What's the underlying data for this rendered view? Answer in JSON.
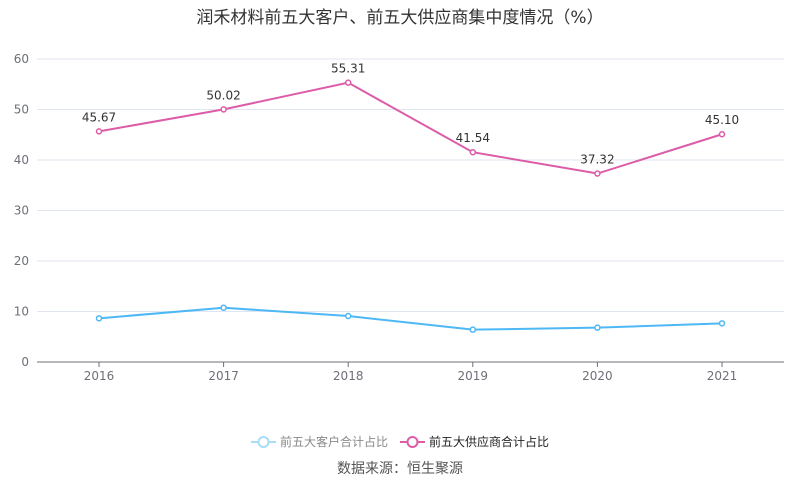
{
  "chart_data": {
    "type": "line",
    "title": "润禾材料前五大客户、前五大供应商集中度情况（%）",
    "categories": [
      "2016",
      "2017",
      "2018",
      "2019",
      "2020",
      "2021"
    ],
    "ylim": [
      0,
      60
    ],
    "yticks": [
      "0",
      "10",
      "20",
      "30",
      "40",
      "50",
      "60"
    ],
    "grid": true,
    "legend_position": "bottom",
    "series": [
      {
        "name": "前五大客户合计占比",
        "color": "#4db8f5",
        "legend_color": "#a8dcf7",
        "legend_text_color": "#888888",
        "values": [
          8.65,
          10.75,
          9.1,
          6.4,
          6.8,
          7.66
        ],
        "labels": false
      },
      {
        "name": "前五大供应商合计占比",
        "color": "#dc5ca8",
        "legend_color": "#dc5ca8",
        "legend_text_color": "#222222",
        "values": [
          45.67,
          50.02,
          55.31,
          41.54,
          37.32,
          45.1
        ],
        "labels": true,
        "label_text": [
          "45.67",
          "50.02",
          "55.31",
          "41.54",
          "37.32",
          "45.10"
        ]
      }
    ]
  },
  "source": "数据来源：恒生聚源"
}
